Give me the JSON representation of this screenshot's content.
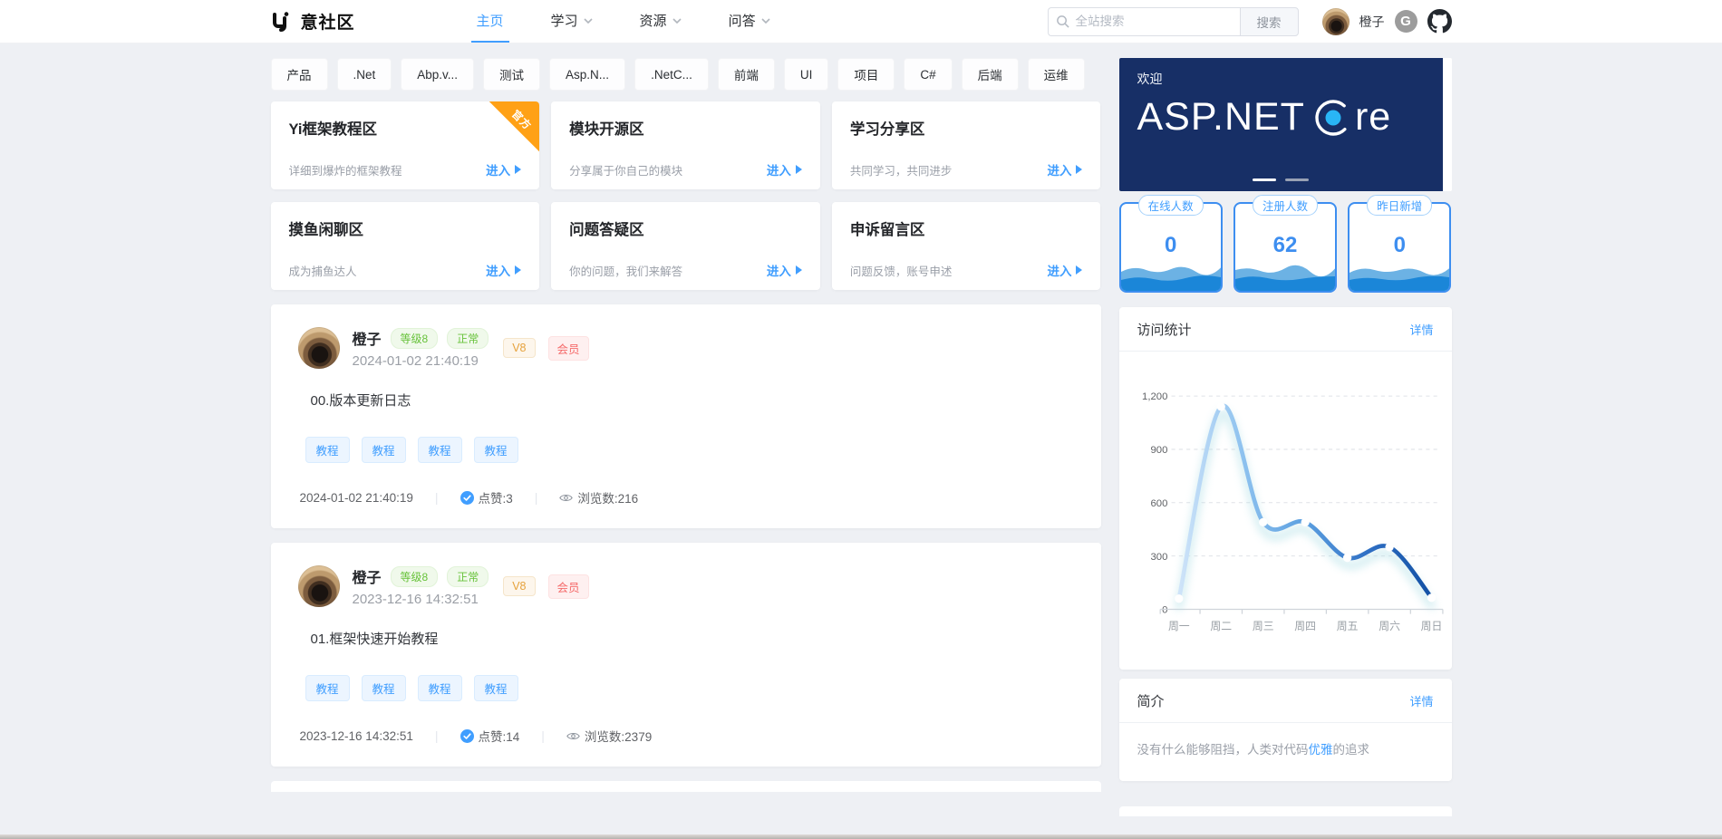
{
  "header": {
    "brand": "意社区",
    "nav": [
      {
        "label": "主页",
        "active": true,
        "dropdown": false
      },
      {
        "label": "学习",
        "active": false,
        "dropdown": true
      },
      {
        "label": "资源",
        "active": false,
        "dropdown": true
      },
      {
        "label": "问答",
        "active": false,
        "dropdown": true
      }
    ],
    "search": {
      "placeholder": "全站搜索",
      "button": "搜索"
    },
    "user": {
      "name": "橙子",
      "gitee_icon_letter": "G"
    }
  },
  "tags": [
    "产品",
    ".Net",
    "Abp.v...",
    "测试",
    "Asp.N...",
    ".NetC...",
    "前端",
    "UI",
    "项目",
    "C#",
    "后端",
    "运维"
  ],
  "sections": [
    {
      "title": "Yi框架教程区",
      "desc": "详细到爆炸的框架教程",
      "link": "进入",
      "ribbon": "官方"
    },
    {
      "title": "模块开源区",
      "desc": "分享属于你自己的模块",
      "link": "进入"
    },
    {
      "title": "学习分享区",
      "desc": "共同学习，共同进步",
      "link": "进入"
    },
    {
      "title": "摸鱼闲聊区",
      "desc": "成为捕鱼达人",
      "link": "进入"
    },
    {
      "title": "问题答疑区",
      "desc": "你的问题，我们来解答",
      "link": "进入"
    },
    {
      "title": "申诉留言区",
      "desc": "问题反馈，账号申述",
      "link": "进入"
    }
  ],
  "posts": [
    {
      "author": "橙子",
      "level": "等级8",
      "status": "正常",
      "vip": "V8",
      "member": "会员",
      "date": "2024-01-02 21:40:19",
      "title": "00.版本更新日志",
      "tags": [
        "教程",
        "教程",
        "教程",
        "教程"
      ],
      "time": "2024-01-02 21:40:19",
      "likes": "点赞:3",
      "views": "浏览数:216"
    },
    {
      "author": "橙子",
      "level": "等级8",
      "status": "正常",
      "vip": "V8",
      "member": "会员",
      "date": "2023-12-16 14:32:51",
      "title": "01.框架快速开始教程",
      "tags": [
        "教程",
        "教程",
        "教程",
        "教程"
      ],
      "time": "2023-12-16 14:32:51",
      "likes": "点赞:14",
      "views": "浏览数:2379"
    }
  ],
  "sidebar": {
    "banner": {
      "greeting": "欢迎",
      "brand_left": "ASP.NET",
      "brand_right": "re"
    },
    "stats": [
      {
        "label": "在线人数",
        "value": "0"
      },
      {
        "label": "注册人数",
        "value": "62"
      },
      {
        "label": "昨日新增",
        "value": "0"
      }
    ],
    "visit": {
      "title": "访问统计",
      "more": "详情"
    },
    "intro": {
      "title": "简介",
      "more": "详情",
      "text_before": "没有什么能够阻挡，人类对代码",
      "text_link": "优雅",
      "text_after": "的追求"
    }
  },
  "chart_data": {
    "type": "line",
    "title": "访问统计",
    "categories": [
      "周一",
      "周二",
      "周三",
      "周四",
      "周五",
      "周六",
      "周日"
    ],
    "values": [
      60,
      1140,
      490,
      490,
      290,
      350,
      65
    ],
    "ylim": [
      0,
      1200
    ],
    "yticks": [
      {
        "v": 0,
        "label": "0"
      },
      {
        "v": 300,
        "label": "300"
      },
      {
        "v": 600,
        "label": "600"
      },
      {
        "v": 900,
        "label": "900"
      },
      {
        "v": 1200,
        "label": "1,200"
      }
    ],
    "grid": true,
    "smooth": true,
    "legend": false,
    "line_gradient": [
      "#cfe4f9",
      "#8ec2ef",
      "#5b9fe0",
      "#2f6fc4",
      "#1250a4"
    ]
  },
  "colors": {
    "primary": "#409eff",
    "success": "#67c23a",
    "warning": "#e6a23c",
    "danger": "#f56c6c",
    "ribbon": "#ffa116",
    "banner_bg": "#172f66"
  }
}
